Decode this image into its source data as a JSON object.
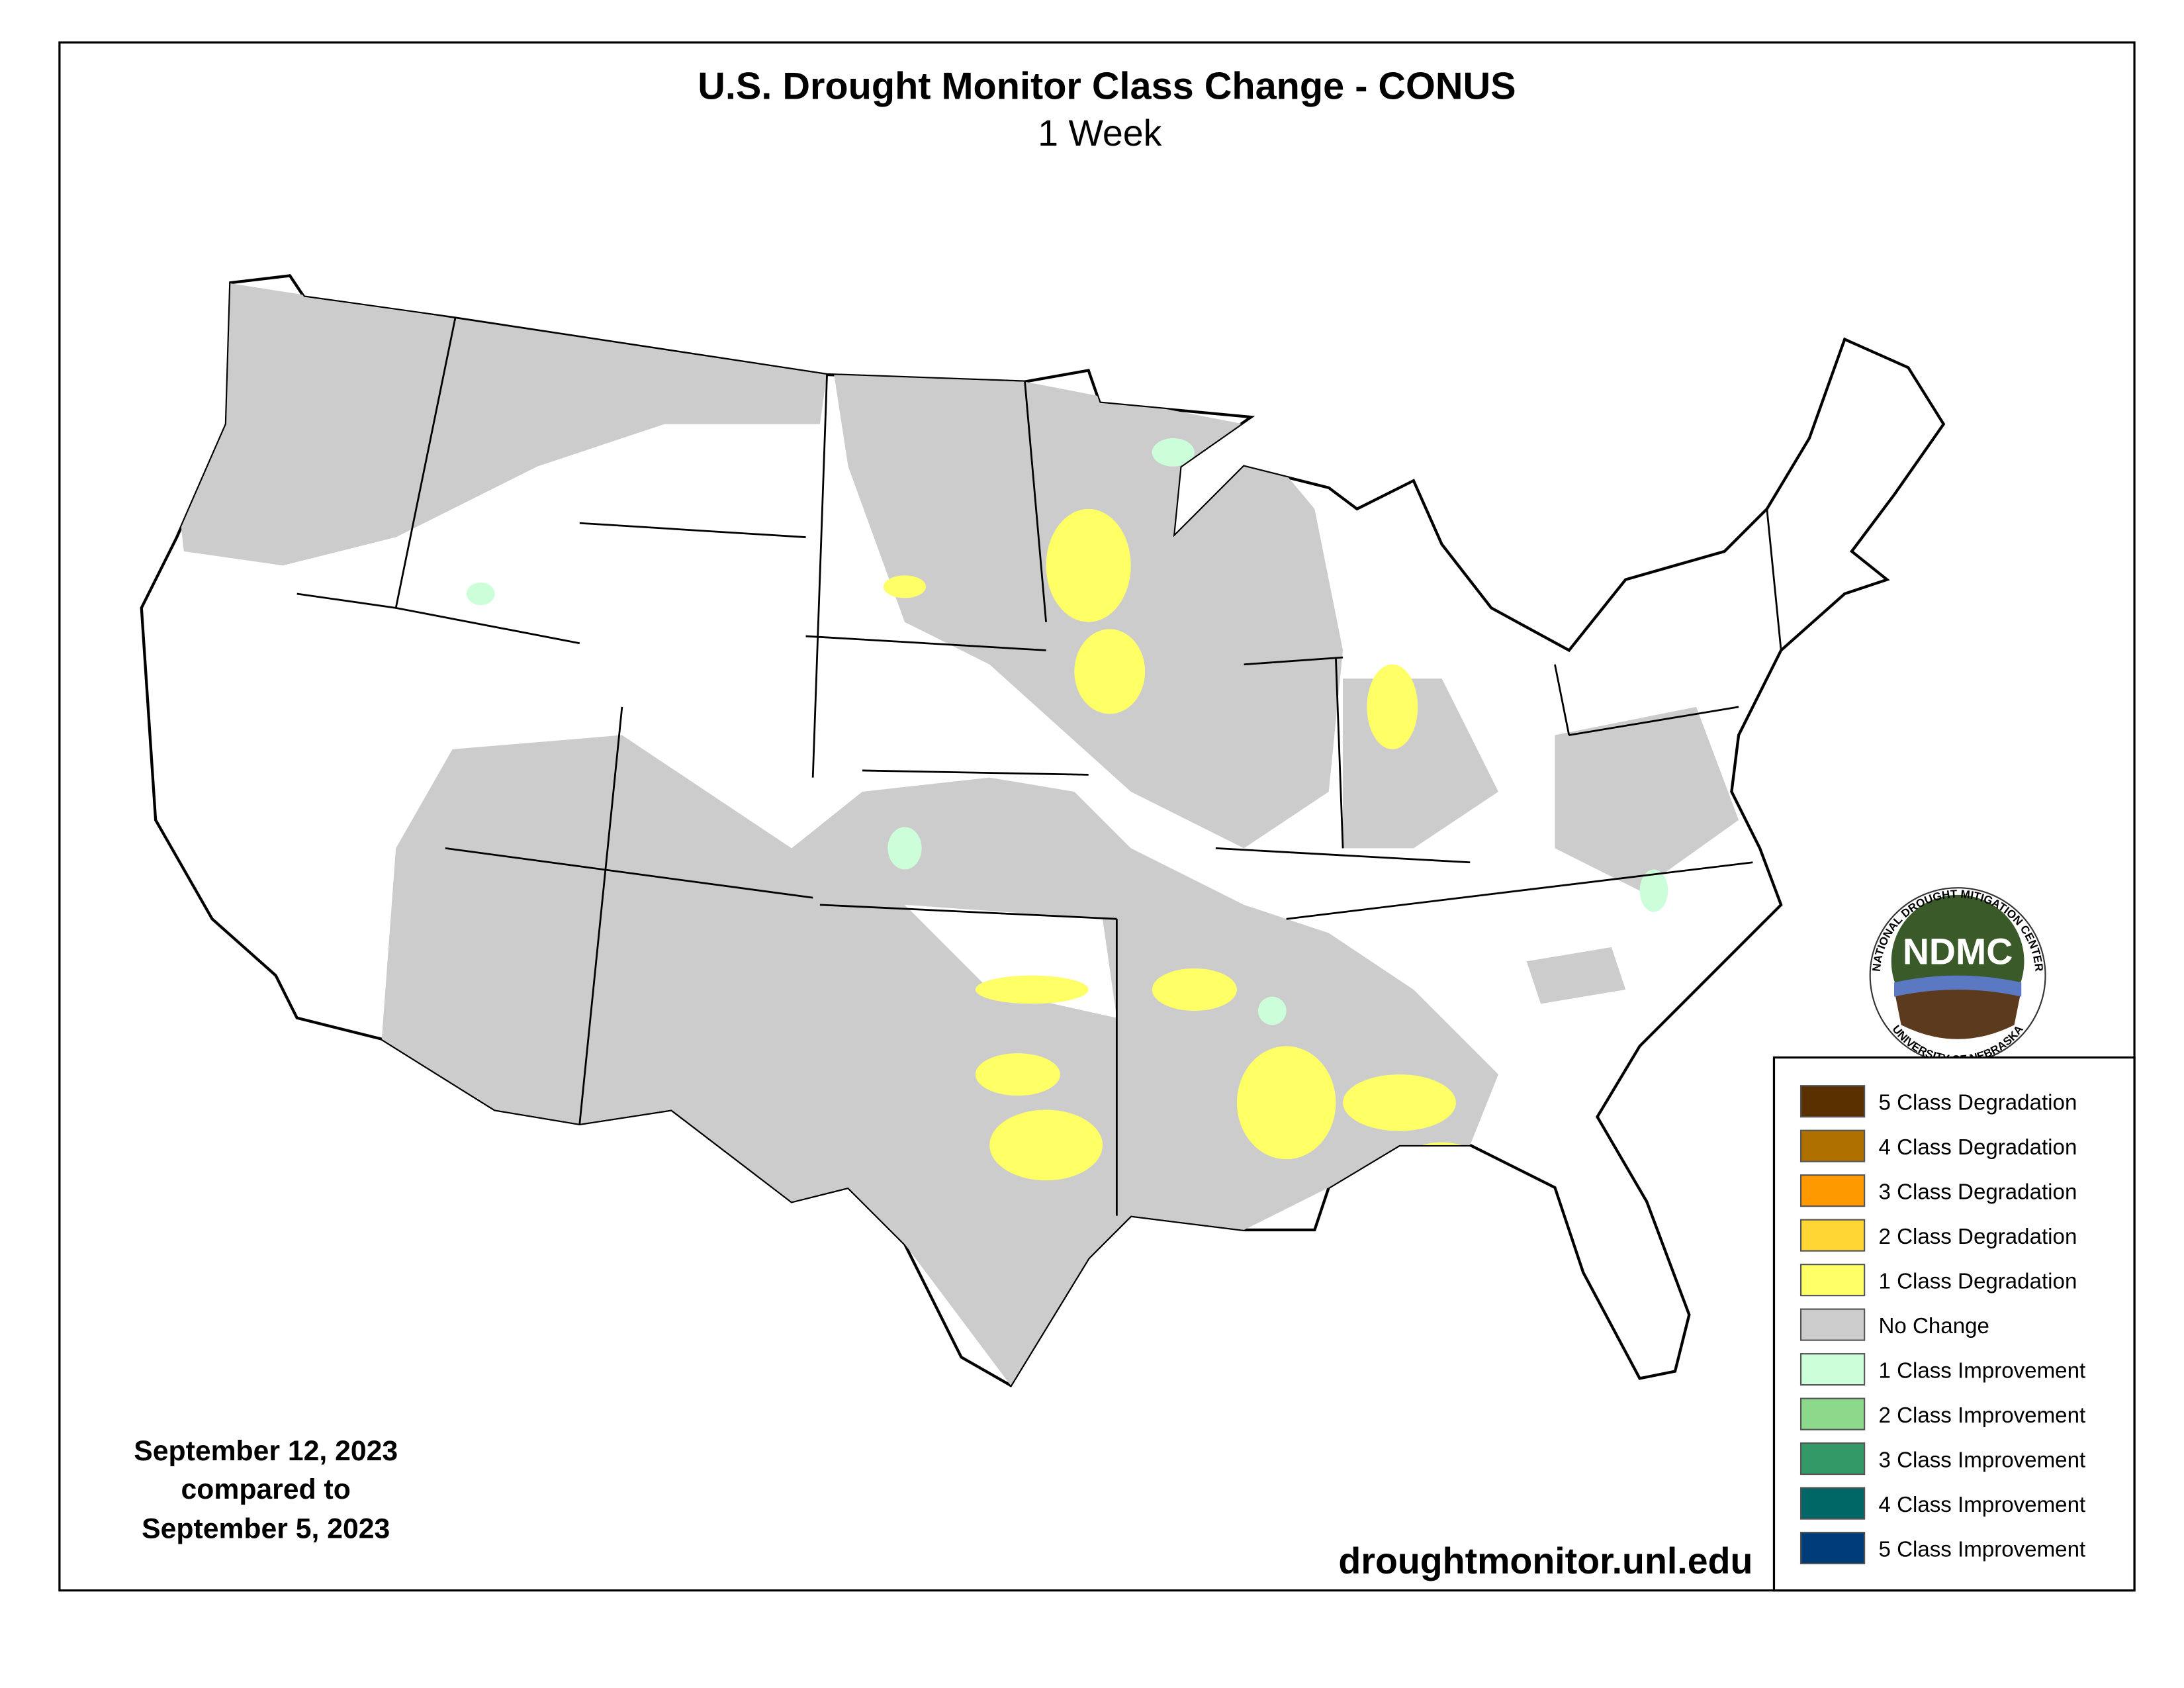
{
  "header": {
    "title": "U.S. Drought Monitor Class Change - CONUS",
    "subtitle": "1 Week"
  },
  "dates": [
    "September 12, 2023",
    "compared to",
    "September 5, 2023"
  ],
  "source": "droughtmonitor.unl.edu",
  "logo": {
    "acronym": "NDMC",
    "top_text": "NATIONAL DROUGHT MITIGATION CENTER",
    "bottom_text": "UNIVERSITY OF NEBRASKA"
  },
  "legend": {
    "items": [
      {
        "label": "5 Class Degradation",
        "color": "#5a3000"
      },
      {
        "label": "4 Class Degradation",
        "color": "#b07000"
      },
      {
        "label": "3 Class Degradation",
        "color": "#ff9900"
      },
      {
        "label": "2 Class Degradation",
        "color": "#ffd633"
      },
      {
        "label": "1 Class Degradation",
        "color": "#ffff66"
      },
      {
        "label": "No Change",
        "color": "#cccccc"
      },
      {
        "label": "1 Class Improvement",
        "color": "#ccffd9"
      },
      {
        "label": "2 Class Improvement",
        "color": "#8cd98c"
      },
      {
        "label": "3 Class Improvement",
        "color": "#339966"
      },
      {
        "label": "4 Class Improvement",
        "color": "#006666"
      },
      {
        "label": "5 Class Improvement",
        "color": "#003c78"
      }
    ]
  }
}
